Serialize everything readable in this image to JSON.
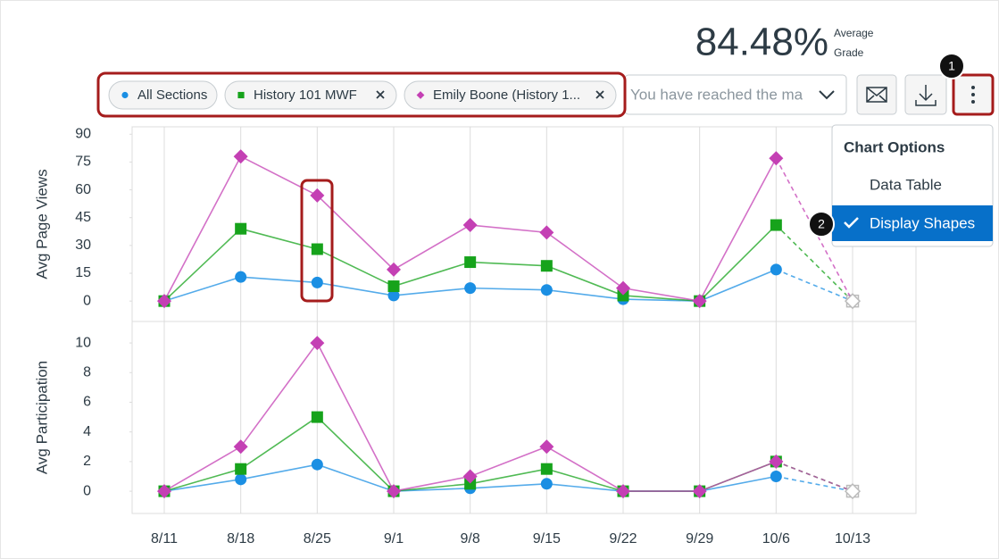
{
  "header": {
    "grade": "84.48%",
    "grade_label_1": "Average",
    "grade_label_2": "Grade"
  },
  "search_placeholder": "You have reached the ma",
  "menu": {
    "title": "Chart Options",
    "items": [
      "Data Table",
      "Display Shapes"
    ]
  },
  "callouts": [
    "1",
    "2"
  ],
  "chart_data": [
    {
      "type": "line",
      "ylabel": "Avg Page Views",
      "ylim": [
        -11,
        94
      ],
      "yticks": [
        0,
        15,
        30,
        45,
        60,
        75,
        90
      ],
      "grid": true,
      "projected_last": true,
      "series": [
        {
          "name": "All Sections",
          "color": "#1b8fe3",
          "marker": "circle",
          "values": [
            0,
            13,
            10,
            3,
            7,
            6,
            1,
            0,
            17,
            0
          ]
        },
        {
          "name": "History 101 MWF",
          "color": "#16a31b",
          "marker": "square",
          "values": [
            0,
            39,
            28,
            8,
            21,
            19,
            3,
            0,
            41,
            0
          ]
        },
        {
          "name": "Emily Boone (History 1...",
          "color": "#c440b4",
          "marker": "diamond",
          "values": [
            0,
            78,
            57,
            17,
            41,
            37,
            7,
            0,
            77,
            0
          ]
        }
      ]
    },
    {
      "type": "line",
      "ylabel": "Avg Participation",
      "ylim": [
        -1.5,
        11.45
      ],
      "yticks": [
        0,
        2,
        4,
        6,
        8,
        10
      ],
      "grid": true,
      "projected_last": true,
      "categories": [
        "8/11",
        "8/18",
        "8/25",
        "9/1",
        "9/8",
        "9/15",
        "9/22",
        "9/29",
        "10/6",
        "10/13"
      ],
      "series": [
        {
          "name": "All Sections",
          "color": "#1b8fe3",
          "marker": "circle",
          "values": [
            0,
            0.8,
            1.8,
            0,
            0.2,
            0.5,
            0,
            0,
            1,
            0
          ]
        },
        {
          "name": "History 101 MWF",
          "color": "#16a31b",
          "marker": "square",
          "values": [
            0,
            1.5,
            5,
            0,
            0.5,
            1.5,
            0,
            0,
            2,
            0
          ]
        },
        {
          "name": "Emily Boone (History 1...",
          "color": "#c440b4",
          "marker": "diamond",
          "values": [
            0,
            3,
            10,
            0,
            1,
            3,
            0,
            0,
            2,
            0
          ]
        }
      ]
    }
  ]
}
